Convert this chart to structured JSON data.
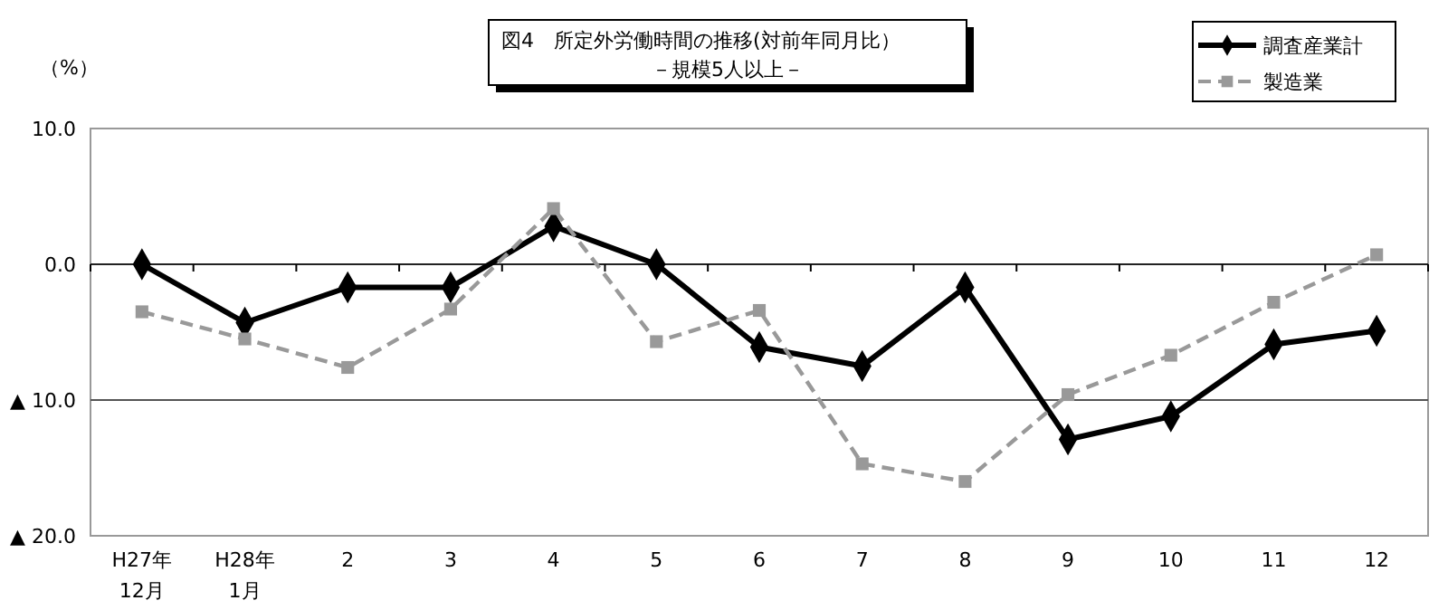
{
  "chart_data": {
    "type": "line",
    "title": "図4　所定外労働時間の推移(対前年同月比）",
    "subtitle": "－規模5人以上－",
    "ylabel": "（%）",
    "categories": [
      "H27年\n12月",
      "H28年\n1月",
      "2",
      "3",
      "4",
      "5",
      "6",
      "7",
      "8",
      "9",
      "10",
      "11",
      "12"
    ],
    "series": [
      {
        "name": "調査産業計",
        "color": "#000000",
        "marker": "diamond",
        "line_style": "solid",
        "values": [
          0,
          -4.3,
          -1.7,
          -1.7,
          2.8,
          0,
          -6.1,
          -7.5,
          -1.7,
          -12.9,
          -11.2,
          -5.9,
          -4.9
        ]
      },
      {
        "name": "製造業",
        "color": "#999999",
        "marker": "square",
        "line_style": "dashed",
        "values": [
          -3.5,
          -5.5,
          -7.6,
          -3.3,
          4.1,
          -5.7,
          -3.4,
          -14.7,
          -16.0,
          -9.6,
          -6.7,
          -2.8,
          0.7
        ]
      }
    ],
    "ylim": [
      -20,
      10
    ],
    "yticks": [
      {
        "value": -20,
        "label": "▲ 20.0"
      },
      {
        "value": -10,
        "label": "▲ 10.0"
      },
      {
        "value": 0,
        "label": "0.0"
      },
      {
        "value": 10,
        "label": "10.0"
      }
    ],
    "ref_lines": [
      {
        "axis": "y",
        "value": -10,
        "color": "#555555"
      }
    ],
    "legend": "top right"
  }
}
